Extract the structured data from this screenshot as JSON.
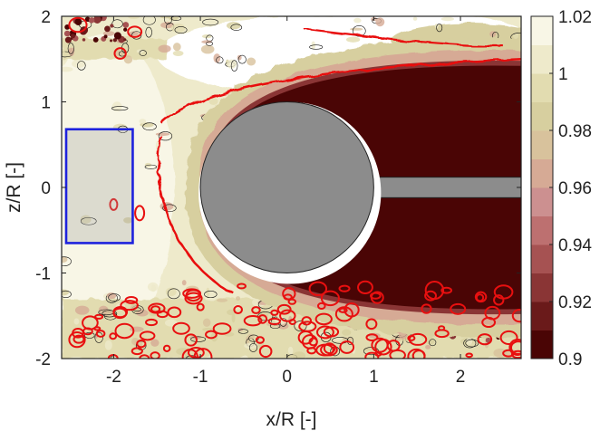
{
  "chart_data": {
    "type": "heatmap",
    "title": "",
    "xlabel": "x/R [-]",
    "ylabel": "z/R [-]",
    "xlim": [
      -2.6,
      2.7
    ],
    "ylim": [
      -2,
      2
    ],
    "x_ticks": [
      -2,
      -1,
      0,
      1,
      2
    ],
    "x_tick_labels": [
      "-2",
      "-1",
      "0",
      "1",
      "2"
    ],
    "y_ticks": [
      -2,
      -1,
      0,
      1,
      2
    ],
    "y_tick_labels": [
      "-2",
      "-1",
      "0",
      "1",
      "2"
    ],
    "colorbar": {
      "range": [
        0.9,
        1.02
      ],
      "levels": [
        0.9,
        0.91,
        0.92,
        0.93,
        0.94,
        0.95,
        0.96,
        0.97,
        0.98,
        0.99,
        1.0,
        1.01,
        1.02
      ],
      "colors": [
        "#4a0505",
        "#6a1a1a",
        "#8a3535",
        "#a65252",
        "#bd7070",
        "#cc9090",
        "#d6aa95",
        "#d8c29c",
        "#d7cf9f",
        "#e2dcb0",
        "#eeeacb",
        "#f8f6e6",
        "#ffffff"
      ],
      "ticks": [
        0.9,
        0.92,
        0.94,
        0.96,
        0.98,
        1,
        1.02
      ],
      "tick_labels": [
        "0.9",
        "0.92",
        "0.94",
        "0.96",
        "0.98",
        "1",
        "1.02"
      ]
    },
    "sphere": {
      "center": [
        0,
        0
      ],
      "radius": 1,
      "color": "#8c8c8c"
    },
    "support_rod": {
      "x_range": [
        1,
        2.7
      ],
      "z_range": [
        -0.12,
        0.12
      ],
      "color": "#8c8c8c"
    },
    "wake_region": {
      "value": 0.9,
      "x_range": [
        0.4,
        2.7
      ],
      "z_half_width": [
        0.9,
        1.5
      ],
      "color": "#4a0505"
    },
    "freestream_region": {
      "value": 1.02,
      "color": "#ffffff"
    },
    "highlight_box": {
      "x": [
        -2.6,
        -1.78
      ],
      "z": [
        -0.65,
        0.68
      ],
      "color": "#1e22dd"
    },
    "contour_highlight_color": "#e81010",
    "contour_line_color": "#111111"
  }
}
